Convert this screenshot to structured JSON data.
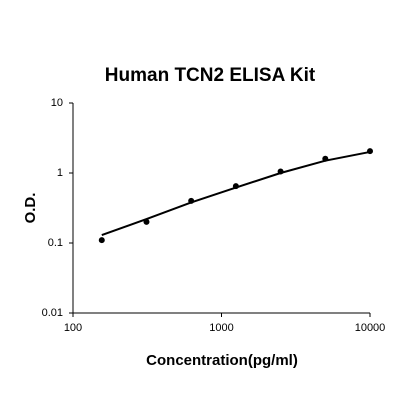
{
  "chart_data": {
    "type": "scatter",
    "title": "Human TCN2 ELISA Kit",
    "x_label": "Concentration(pg/ml)",
    "y_label": "O.D.",
    "x": [
      156.25,
      312.5,
      625,
      1250,
      2500,
      5000,
      10000
    ],
    "series": [
      {
        "color": "#000000",
        "marker": "dot",
        "values": [
          0.11,
          0.2,
          0.4,
          0.65,
          1.05,
          1.6,
          2.05
        ]
      },
      {
        "color": "#000000",
        "marker": "line",
        "values": [
          0.13,
          0.22,
          0.38,
          0.62,
          1.0,
          1.5,
          2.0
        ]
      }
    ],
    "xlim": [
      100,
      10000
    ],
    "ylim": [
      0.01,
      10
    ],
    "xticks": [
      100,
      1000,
      10000
    ],
    "yticks": [
      0.01,
      0.1,
      1,
      10
    ],
    "xscale": "log",
    "yscale": "log",
    "grid": false
  }
}
